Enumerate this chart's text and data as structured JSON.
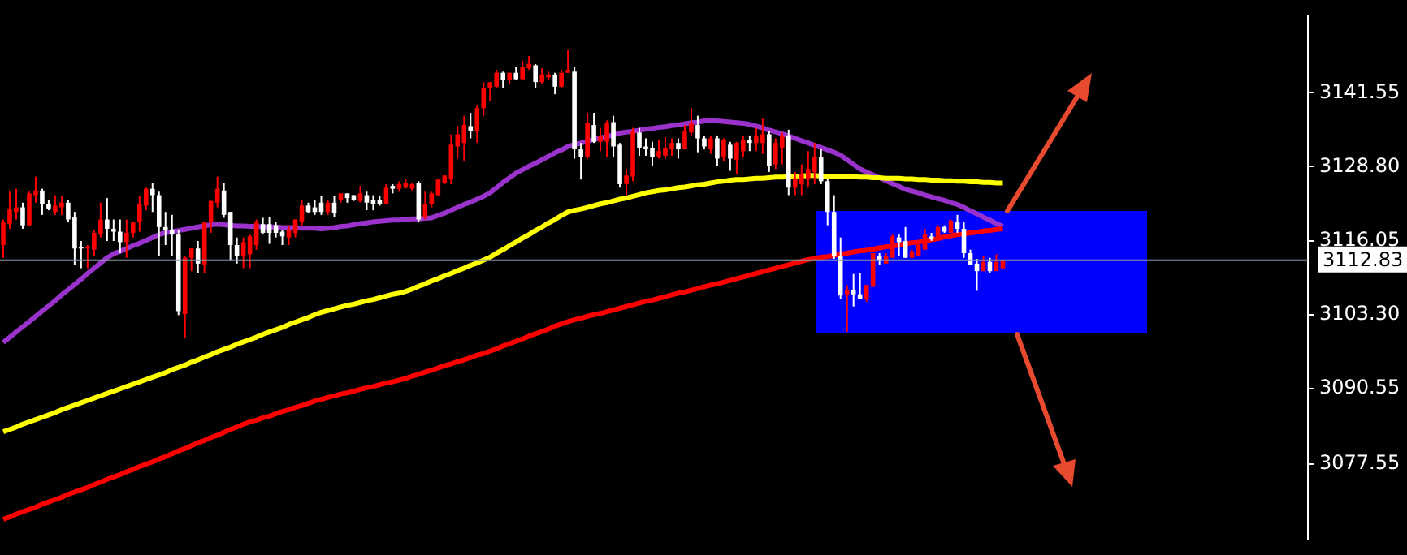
{
  "chart_data": {
    "type": "candlestick",
    "categories": [
      null,
      null,
      null,
      null,
      null,
      null,
      null,
      null,
      null,
      null,
      null,
      null,
      null,
      null,
      null,
      null,
      null,
      null,
      null,
      null,
      null,
      null,
      null,
      null,
      null,
      null,
      null,
      null,
      null,
      null,
      null,
      null,
      null,
      null,
      null,
      null,
      null,
      null,
      null,
      null,
      null,
      null,
      null,
      null,
      null,
      null,
      null,
      null,
      null,
      null,
      null,
      null,
      null,
      null,
      null,
      null,
      null,
      null,
      null,
      null,
      null,
      null,
      null,
      null,
      null,
      null,
      null,
      null,
      null,
      null,
      null,
      null,
      null,
      null,
      null,
      null,
      null,
      null,
      null,
      null,
      null,
      null,
      null,
      null,
      null,
      null,
      null,
      null,
      null,
      null,
      null,
      null,
      null,
      null,
      null,
      null,
      null,
      null,
      null,
      null,
      null,
      null,
      null,
      null,
      null,
      null,
      null,
      null,
      null,
      null,
      null,
      null,
      null,
      null,
      null,
      null,
      null,
      null,
      null,
      null,
      null,
      null,
      null,
      null,
      null,
      null,
      null,
      null,
      null,
      null,
      null,
      null,
      null,
      null,
      null,
      null,
      null,
      null,
      null,
      null,
      null,
      null,
      null,
      null,
      null,
      null,
      null,
      null,
      null,
      null,
      null,
      null,
      null,
      null,
      null
    ],
    "ohlc": [
      [
        3115.3,
        3119.7,
        3113.1,
        3119.2
      ],
      [
        3118.9,
        3124.5,
        3118.1,
        3121.6
      ],
      [
        3121.0,
        3125.0,
        3119.7,
        3121.8
      ],
      [
        3121.8,
        3122.6,
        3118.1,
        3118.7
      ],
      [
        3118.7,
        3124.5,
        3118.7,
        3124.2
      ],
      [
        3123.9,
        3127.1,
        3122.6,
        3124.7
      ],
      [
        3124.7,
        3125.0,
        3120.5,
        3122.3
      ],
      [
        3122.3,
        3123.1,
        3121.3,
        3121.6
      ],
      [
        3121.0,
        3123.9,
        3120.5,
        3122.1
      ],
      [
        3121.8,
        3123.7,
        3120.5,
        3122.6
      ],
      [
        3122.6,
        3123.1,
        3119.2,
        3119.7
      ],
      [
        3120.2,
        3121.0,
        3111.8,
        3114.7
      ],
      [
        3115.0,
        3116.0,
        3111.3,
        3114.7
      ],
      [
        3114.7,
        3115.3,
        3111.3,
        3115.0
      ],
      [
        3114.5,
        3117.9,
        3113.4,
        3117.4
      ],
      [
        3117.1,
        3122.6,
        3116.6,
        3119.7
      ],
      [
        3119.7,
        3123.4,
        3116.0,
        3118.1
      ],
      [
        3118.1,
        3119.7,
        3116.0,
        3117.6
      ],
      [
        3117.6,
        3119.7,
        3113.9,
        3115.8
      ],
      [
        3115.8,
        3119.7,
        3113.1,
        3117.4
      ],
      [
        3117.4,
        3119.2,
        3116.6,
        3119.2
      ],
      [
        3119.2,
        3123.7,
        3117.6,
        3122.3
      ],
      [
        3122.1,
        3125.2,
        3121.3,
        3125.0
      ],
      [
        3125.0,
        3126.0,
        3121.0,
        3123.9
      ],
      [
        3123.9,
        3124.5,
        3113.4,
        3118.4
      ],
      [
        3118.4,
        3121.0,
        3115.3,
        3117.9
      ],
      [
        3117.9,
        3120.5,
        3113.4,
        3117.1
      ],
      [
        3117.1,
        3117.9,
        3103.2,
        3103.9
      ],
      [
        3103.4,
        3113.4,
        3099.2,
        3113.1
      ],
      [
        3113.1,
        3114.7,
        3110.8,
        3114.7
      ],
      [
        3114.7,
        3116.0,
        3110.5,
        3112.1
      ],
      [
        3111.8,
        3119.2,
        3110.5,
        3119.2
      ],
      [
        3119.2,
        3122.9,
        3117.4,
        3122.9
      ],
      [
        3122.6,
        3127.1,
        3121.8,
        3125.0
      ],
      [
        3124.7,
        3126.0,
        3120.0,
        3120.5
      ],
      [
        3121.0,
        3121.0,
        3112.6,
        3115.3
      ],
      [
        3115.3,
        3116.6,
        3112.1,
        3113.4
      ],
      [
        3113.4,
        3116.6,
        3111.3,
        3115.8
      ],
      [
        3113.7,
        3117.1,
        3111.3,
        3116.8
      ],
      [
        3115.3,
        3119.7,
        3114.5,
        3119.2
      ],
      [
        3118.9,
        3120.0,
        3117.1,
        3117.4
      ],
      [
        3118.9,
        3120.2,
        3115.5,
        3117.4
      ],
      [
        3118.7,
        3119.2,
        3116.6,
        3117.4
      ],
      [
        3117.6,
        3117.9,
        3115.3,
        3116.8
      ],
      [
        3116.6,
        3118.7,
        3115.3,
        3117.9
      ],
      [
        3117.4,
        3119.7,
        3116.6,
        3119.7
      ],
      [
        3119.2,
        3123.1,
        3118.7,
        3122.1
      ],
      [
        3122.1,
        3122.6,
        3120.8,
        3121.0
      ],
      [
        3121.8,
        3123.1,
        3120.5,
        3121.0
      ],
      [
        3122.6,
        3123.7,
        3120.5,
        3121.0
      ],
      [
        3121.0,
        3123.1,
        3120.5,
        3122.6
      ],
      [
        3122.6,
        3123.7,
        3120.2,
        3120.8
      ],
      [
        3123.1,
        3124.2,
        3122.6,
        3124.2
      ],
      [
        3124.2,
        3124.2,
        3122.6,
        3123.4
      ],
      [
        3123.9,
        3123.9,
        3122.9,
        3123.1
      ],
      [
        3122.9,
        3125.5,
        3122.6,
        3124.2
      ],
      [
        3123.9,
        3124.5,
        3121.3,
        3122.6
      ],
      [
        3123.1,
        3123.9,
        3121.3,
        3122.3
      ],
      [
        3123.1,
        3123.7,
        3122.1,
        3122.3
      ],
      [
        3122.3,
        3125.8,
        3122.3,
        3125.2
      ],
      [
        3125.5,
        3125.8,
        3124.2,
        3125.0
      ],
      [
        3125.0,
        3126.3,
        3124.5,
        3125.8
      ],
      [
        3125.2,
        3126.6,
        3125.0,
        3126.0
      ],
      [
        3125.0,
        3126.0,
        3124.7,
        3125.8
      ],
      [
        3126.0,
        3126.3,
        3119.2,
        3119.7
      ],
      [
        3120.0,
        3124.5,
        3119.7,
        3122.3
      ],
      [
        3122.3,
        3124.5,
        3121.8,
        3124.2
      ],
      [
        3123.9,
        3126.6,
        3123.7,
        3126.6
      ],
      [
        3126.0,
        3127.3,
        3125.8,
        3127.3
      ],
      [
        3126.6,
        3134.4,
        3125.8,
        3132.6
      ],
      [
        3132.3,
        3135.8,
        3130.2,
        3134.4
      ],
      [
        3132.9,
        3137.6,
        3129.7,
        3136.0
      ],
      [
        3135.8,
        3138.1,
        3133.7,
        3135.0
      ],
      [
        3135.0,
        3139.4,
        3132.9,
        3138.9
      ],
      [
        3138.9,
        3143.4,
        3137.6,
        3142.3
      ],
      [
        3142.3,
        3143.4,
        3140.2,
        3143.4
      ],
      [
        3142.6,
        3145.5,
        3142.3,
        3145.0
      ],
      [
        3145.0,
        3145.2,
        3142.3,
        3143.7
      ],
      [
        3143.7,
        3145.0,
        3143.1,
        3145.0
      ],
      [
        3145.0,
        3146.0,
        3143.7,
        3143.9
      ],
      [
        3143.9,
        3147.1,
        3143.9,
        3146.0
      ],
      [
        3145.8,
        3147.9,
        3145.5,
        3146.5
      ],
      [
        3146.3,
        3146.5,
        3142.3,
        3143.4
      ],
      [
        3143.4,
        3145.8,
        3143.1,
        3144.7
      ],
      [
        3144.2,
        3145.2,
        3143.7,
        3144.7
      ],
      [
        3144.7,
        3145.0,
        3141.3,
        3142.6
      ],
      [
        3142.6,
        3145.5,
        3142.3,
        3145.0
      ],
      [
        3145.0,
        3148.9,
        3145.0,
        3145.5
      ],
      [
        3145.2,
        3146.0,
        3130.2,
        3131.8
      ],
      [
        3131.8,
        3132.9,
        3126.6,
        3130.5
      ],
      [
        3130.5,
        3138.1,
        3130.2,
        3136.3
      ],
      [
        3136.0,
        3138.1,
        3132.9,
        3133.1
      ],
      [
        3133.1,
        3135.5,
        3131.5,
        3134.2
      ],
      [
        3133.1,
        3136.8,
        3130.5,
        3136.3
      ],
      [
        3136.5,
        3137.6,
        3130.5,
        3132.3
      ],
      [
        3132.6,
        3132.9,
        3125.2,
        3125.8
      ],
      [
        3125.8,
        3128.4,
        3123.9,
        3127.3
      ],
      [
        3127.1,
        3135.5,
        3126.3,
        3135.0
      ],
      [
        3134.7,
        3135.5,
        3130.7,
        3132.1
      ],
      [
        3132.3,
        3133.7,
        3130.7,
        3131.8
      ],
      [
        3132.1,
        3133.1,
        3128.9,
        3130.5
      ],
      [
        3130.5,
        3133.4,
        3130.2,
        3131.5
      ],
      [
        3130.7,
        3133.9,
        3130.2,
        3132.1
      ],
      [
        3131.8,
        3133.7,
        3130.7,
        3132.9
      ],
      [
        3132.9,
        3133.7,
        3130.2,
        3131.8
      ],
      [
        3131.8,
        3136.0,
        3131.8,
        3135.0
      ],
      [
        3134.7,
        3138.9,
        3134.2,
        3136.3
      ],
      [
        3136.0,
        3137.6,
        3131.3,
        3133.7
      ],
      [
        3133.7,
        3134.2,
        3131.8,
        3132.3
      ],
      [
        3131.8,
        3134.2,
        3131.0,
        3133.7
      ],
      [
        3133.7,
        3134.2,
        3128.9,
        3130.2
      ],
      [
        3130.5,
        3133.7,
        3129.7,
        3133.4
      ],
      [
        3132.6,
        3133.1,
        3128.1,
        3130.2
      ],
      [
        3130.0,
        3133.1,
        3127.6,
        3132.9
      ],
      [
        3131.5,
        3134.2,
        3130.5,
        3133.4
      ],
      [
        3133.4,
        3134.2,
        3131.5,
        3132.9
      ],
      [
        3132.9,
        3135.5,
        3131.5,
        3134.2
      ],
      [
        3132.9,
        3137.1,
        3131.0,
        3134.4
      ],
      [
        3134.4,
        3135.0,
        3127.9,
        3128.9
      ],
      [
        3129.2,
        3133.7,
        3128.4,
        3132.9
      ],
      [
        3132.1,
        3134.7,
        3129.2,
        3134.2
      ],
      [
        3134.2,
        3135.2,
        3123.9,
        3125.2
      ],
      [
        3125.2,
        3127.9,
        3123.9,
        3126.8
      ],
      [
        3125.8,
        3129.2,
        3123.9,
        3127.6
      ],
      [
        3126.6,
        3131.5,
        3125.2,
        3128.4
      ],
      [
        3127.9,
        3132.9,
        3125.8,
        3130.5
      ],
      [
        3130.5,
        3131.8,
        3125.8,
        3126.3
      ],
      [
        3126.3,
        3126.8,
        3118.7,
        3121.0
      ],
      [
        3121.0,
        3123.9,
        3112.9,
        3113.4
      ],
      [
        3113.4,
        3116.6,
        3106.0,
        3106.6
      ],
      [
        3106.6,
        3108.4,
        3100.3,
        3107.6
      ],
      [
        3107.6,
        3110.3,
        3104.7,
        3106.8
      ],
      [
        3106.8,
        3110.5,
        3106.0,
        3106.0
      ],
      [
        3106.0,
        3108.4,
        3105.5,
        3108.4
      ],
      [
        3108.1,
        3113.9,
        3108.1,
        3113.9
      ],
      [
        3113.4,
        3113.9,
        3111.8,
        3112.6
      ],
      [
        3112.1,
        3113.9,
        3112.1,
        3113.4
      ],
      [
        3113.1,
        3117.1,
        3113.1,
        3116.8
      ],
      [
        3116.6,
        3117.1,
        3113.4,
        3115.8
      ],
      [
        3116.0,
        3118.4,
        3113.1,
        3113.1
      ],
      [
        3113.1,
        3114.5,
        3113.1,
        3114.2
      ],
      [
        3113.4,
        3115.8,
        3113.4,
        3115.3
      ],
      [
        3114.5,
        3118.1,
        3114.5,
        3117.1
      ],
      [
        3116.8,
        3117.4,
        3116.0,
        3116.3
      ],
      [
        3116.0,
        3118.7,
        3116.0,
        3118.4
      ],
      [
        3118.4,
        3118.7,
        3117.4,
        3117.6
      ],
      [
        3117.4,
        3119.7,
        3117.4,
        3119.5
      ],
      [
        3119.2,
        3120.5,
        3117.4,
        3118.1
      ],
      [
        3118.1,
        3119.2,
        3113.1,
        3113.9
      ],
      [
        3113.9,
        3114.5,
        3111.8,
        3111.8
      ],
      [
        3112.1,
        3112.9,
        3107.4,
        3110.8
      ],
      [
        3110.8,
        3113.4,
        3110.8,
        3112.4
      ],
      [
        3112.4,
        3113.1,
        3110.5,
        3110.8
      ],
      [
        3110.8,
        3113.7,
        3110.8,
        3112.4
      ],
      [
        3111.3,
        3112.6,
        3111.3,
        3112.6
      ]
    ],
    "colors": [
      "#ff0000",
      "#ff0000",
      "#ff0000",
      "#ffffff",
      "#ff0000",
      "#ff0000",
      "#ffffff",
      "#ffffff",
      "#ff0000",
      "#ff0000",
      "#ffffff",
      "#ffffff",
      "#ffffff",
      "#ff0000",
      "#ff0000",
      "#ff0000",
      "#ffffff",
      "#ffffff",
      "#ffffff",
      "#ff0000",
      "#ff0000",
      "#ff0000",
      "#ff0000",
      "#ffffff",
      "#ffffff",
      "#ffffff",
      "#ffffff",
      "#ffffff",
      "#ff0000",
      "#ff0000",
      "#ffffff",
      "#ff0000",
      "#ff0000",
      "#ff0000",
      "#ffffff",
      "#ffffff",
      "#ffffff",
      "#ff0000",
      "#ff0000",
      "#ff0000",
      "#ffffff",
      "#ffffff",
      "#ffffff",
      "#ffffff",
      "#ff0000",
      "#ff0000",
      "#ff0000",
      "#ffffff",
      "#ffffff",
      "#ffffff",
      "#ff0000",
      "#ffffff",
      "#ff0000",
      "#ffffff",
      "#ffffff",
      "#ff0000",
      "#ffffff",
      "#ffffff",
      "#ffffff",
      "#ff0000",
      "#ffffff",
      "#ff0000",
      "#ff0000",
      "#ff0000",
      "#ffffff",
      "#ff0000",
      "#ff0000",
      "#ff0000",
      "#ff0000",
      "#ff0000",
      "#ff0000",
      "#ff0000",
      "#ffffff",
      "#ff0000",
      "#ff0000",
      "#ff0000",
      "#ff0000",
      "#ffffff",
      "#ff0000",
      "#ffffff",
      "#ff0000",
      "#ff0000",
      "#ffffff",
      "#ff0000",
      "#ff0000",
      "#ffffff",
      "#ff0000",
      "#ff0000",
      "#ffffff",
      "#ffffff",
      "#ff0000",
      "#ffffff",
      "#ff0000",
      "#ff0000",
      "#ffffff",
      "#ffffff",
      "#ff0000",
      "#ff0000",
      "#ffffff",
      "#ffffff",
      "#ffffff",
      "#ff0000",
      "#ff0000",
      "#ff0000",
      "#ffffff",
      "#ff0000",
      "#ff0000",
      "#ffffff",
      "#ffffff",
      "#ff0000",
      "#ffffff",
      "#ff0000",
      "#ffffff",
      "#ff0000",
      "#ff0000",
      "#ffffff",
      "#ff0000",
      "#ff0000",
      "#ffffff",
      "#ff0000",
      "#ff0000",
      "#ffffff",
      "#ff0000",
      "#ff0000",
      "#ff0000",
      "#ff0000",
      "#ffffff",
      "#ffffff",
      "#ffffff",
      "#ffffff",
      "#ff0000",
      "#ffffff",
      "#ffffff",
      "#ff0000",
      "#ff0000",
      "#ffffff",
      "#ff0000",
      "#ff0000",
      "#ffffff",
      "#ffffff",
      "#ff0000",
      "#ff0000",
      "#ff0000",
      "#ffffff",
      "#ff0000",
      "#ffffff",
      "#ff0000",
      "#ffffff",
      "#ffffff",
      "#ffffff",
      "#ffffff",
      "#ff0000",
      "#ffffff",
      "#ff0000",
      "#ff0000"
    ],
    "series": [
      {
        "type": "line",
        "color": "#ff0000",
        "values": [
          3068.0,
          3068.4,
          3068.9,
          3069.3,
          3069.7,
          3070.1,
          3070.6,
          3071.0,
          3071.4,
          3071.8,
          3072.3,
          3072.7,
          3073.1,
          3073.5,
          3074.0,
          3074.4,
          3074.9,
          3075.3,
          3075.7,
          3076.2,
          3076.6,
          3077.1,
          3077.5,
          3077.9,
          3078.4,
          3078.8,
          3079.3,
          3079.8,
          3080.2,
          3080.7,
          3081.2,
          3081.6,
          3082.1,
          3082.5,
          3083.0,
          3083.5,
          3083.9,
          3084.4,
          3084.8,
          3085.1,
          3085.5,
          3085.8,
          3086.2,
          3086.6,
          3086.9,
          3087.3,
          3087.6,
          3088.0,
          3088.4,
          3088.7,
          3089.0,
          3089.3,
          3089.6,
          3089.8,
          3090.1,
          3090.4,
          3090.7,
          3090.9,
          3091.2,
          3091.5,
          3091.7,
          3092.0,
          3092.3,
          3092.7,
          3093.0,
          3093.4,
          3093.7,
          3094.1,
          3094.5,
          3094.8,
          3095.2,
          3095.5,
          3095.9,
          3096.3,
          3096.6,
          3097.0,
          3097.4,
          3097.9,
          3098.3,
          3098.7,
          3099.1,
          3099.6,
          3100.0,
          3100.4,
          3100.8,
          3101.3,
          3101.7,
          3102.1,
          3102.4,
          3102.7,
          3103.0,
          3103.3,
          3103.5,
          3103.8,
          3104.1,
          3104.4,
          3104.7,
          3105.0,
          3105.3,
          3105.6,
          3105.8,
          3106.1,
          3106.4,
          3106.7,
          3107.0,
          3107.2,
          3107.5,
          3107.8,
          3108.1,
          3108.4,
          3108.6,
          3108.9,
          3109.2,
          3109.5,
          3109.8,
          3110.1,
          3110.4,
          3110.7,
          3111.0,
          3111.3,
          3111.6,
          3111.9,
          3112.2,
          3112.5,
          3112.8,
          3113.0,
          3113.2,
          3113.3,
          3113.5,
          3113.7,
          3113.9,
          3114.1,
          3114.3,
          3114.4,
          3114.6,
          3114.8,
          3115.0,
          3115.1,
          3115.3,
          3115.5,
          3115.7,
          3115.8,
          3116.0,
          3116.2,
          3116.4,
          3116.7,
          3116.9,
          3117.1,
          3117.2,
          3117.4,
          3117.5,
          3117.7,
          3117.8,
          3118.0,
          3118.1
        ]
      },
      {
        "type": "line",
        "color": "#ffff00",
        "values": [
          3083.1,
          3083.5,
          3083.9,
          3084.4,
          3084.8,
          3085.2,
          3085.6,
          3086.0,
          3086.4,
          3086.9,
          3087.3,
          3087.7,
          3088.1,
          3088.5,
          3088.9,
          3089.3,
          3089.7,
          3090.1,
          3090.5,
          3090.9,
          3091.3,
          3091.7,
          3092.1,
          3092.5,
          3092.9,
          3093.3,
          3093.8,
          3094.2,
          3094.6,
          3095.1,
          3095.5,
          3096.0,
          3096.4,
          3096.9,
          3097.3,
          3097.7,
          3098.2,
          3098.6,
          3099.0,
          3099.4,
          3099.9,
          3100.3,
          3100.7,
          3101.1,
          3101.6,
          3102.0,
          3102.4,
          3102.8,
          3103.3,
          3103.7,
          3104.0,
          3104.3,
          3104.6,
          3104.9,
          3105.1,
          3105.4,
          3105.7,
          3105.9,
          3106.2,
          3106.5,
          3106.8,
          3107.0,
          3107.3,
          3107.7,
          3108.2,
          3108.6,
          3109.1,
          3109.5,
          3110.0,
          3110.4,
          3110.9,
          3111.3,
          3111.8,
          3112.2,
          3112.7,
          3113.2,
          3113.9,
          3114.5,
          3115.2,
          3115.8,
          3116.5,
          3117.1,
          3117.8,
          3118.4,
          3119.1,
          3119.7,
          3120.4,
          3121.0,
          3121.3,
          3121.5,
          3121.8,
          3122.1,
          3122.4,
          3122.6,
          3122.9,
          3123.2,
          3123.4,
          3123.7,
          3124.0,
          3124.3,
          3124.5,
          3124.7,
          3124.8,
          3125.0,
          3125.2,
          3125.3,
          3125.5,
          3125.7,
          3125.8,
          3126.0,
          3126.2,
          3126.3,
          3126.5,
          3126.6,
          3126.6,
          3126.7,
          3126.8,
          3126.8,
          3126.9,
          3127.0,
          3127.0,
          3127.1,
          3127.2,
          3127.2,
          3127.3,
          3127.3,
          3127.2,
          3127.2,
          3127.2,
          3127.1,
          3127.1,
          3127.1,
          3127.0,
          3127.0,
          3126.9,
          3126.9,
          3126.8,
          3126.8,
          3126.8,
          3126.7,
          3126.7,
          3126.6,
          3126.6,
          3126.5,
          3126.5,
          3126.4,
          3126.4,
          3126.3,
          3126.3,
          3126.2,
          3126.2,
          3126.1,
          3126.1,
          3126.0,
          3126.0
        ]
      },
      {
        "type": "line",
        "color": "#9933cc",
        "values": [
          3098.5,
          3099.4,
          3100.3,
          3101.2,
          3102.1,
          3103.0,
          3103.9,
          3104.8,
          3105.7,
          3106.7,
          3107.6,
          3108.5,
          3109.4,
          3110.4,
          3111.3,
          3112.2,
          3113.1,
          3113.8,
          3114.2,
          3114.7,
          3115.2,
          3115.6,
          3116.1,
          3116.6,
          3117.1,
          3117.4,
          3117.6,
          3117.8,
          3118.0,
          3118.2,
          3118.4,
          3118.6,
          3118.8,
          3118.9,
          3118.8,
          3118.7,
          3118.6,
          3118.6,
          3118.5,
          3118.5,
          3118.4,
          3118.4,
          3118.4,
          3118.3,
          3118.3,
          3118.3,
          3118.2,
          3118.2,
          3118.2,
          3118.1,
          3118.2,
          3118.3,
          3118.5,
          3118.6,
          3118.8,
          3119.0,
          3119.1,
          3119.3,
          3119.4,
          3119.5,
          3119.6,
          3119.6,
          3119.7,
          3119.8,
          3119.8,
          3119.9,
          3120.0,
          3120.4,
          3120.8,
          3121.3,
          3121.8,
          3122.3,
          3122.7,
          3123.2,
          3123.7,
          3124.3,
          3125.2,
          3126.1,
          3126.9,
          3127.7,
          3128.3,
          3128.9,
          3129.4,
          3130.0,
          3130.6,
          3131.2,
          3131.7,
          3132.3,
          3132.6,
          3132.9,
          3133.2,
          3133.5,
          3133.8,
          3134.0,
          3134.3,
          3134.6,
          3134.8,
          3134.9,
          3135.1,
          3135.3,
          3135.4,
          3135.6,
          3135.7,
          3135.9,
          3136.0,
          3136.2,
          3136.4,
          3136.5,
          3136.7,
          3136.8,
          3136.7,
          3136.6,
          3136.5,
          3136.4,
          3136.3,
          3136.1,
          3135.8,
          3135.5,
          3135.1,
          3134.8,
          3134.5,
          3134.1,
          3133.7,
          3133.3,
          3132.9,
          3132.5,
          3132.1,
          3131.7,
          3131.3,
          3130.8,
          3130.0,
          3129.2,
          3128.4,
          3127.9,
          3127.4,
          3126.9,
          3126.4,
          3125.9,
          3125.4,
          3124.9,
          3124.6,
          3124.3,
          3123.9,
          3123.6,
          3123.3,
          3123.0,
          3122.6,
          3122.3,
          3121.8,
          3121.2,
          3120.7,
          3120.1,
          3119.6,
          3119.0,
          3118.5
        ]
      }
    ],
    "ylim": [
      3064.7,
      3154.7
    ],
    "yticks": [
      3141.55,
      {
        "value": 3128.8,
        "label": "3128.80"
      },
      3116.05,
      {
        "value": 3103.3,
        "label": "3103.30"
      },
      3090.55,
      3077.55
    ],
    "ref_lines": [
      {
        "axis": "y",
        "value": 3112.83,
        "label": "3112.83",
        "color": "#8899aa"
      }
    ],
    "tick_labels": "y",
    "marker": "none",
    "line_style": "solid"
  }
}
